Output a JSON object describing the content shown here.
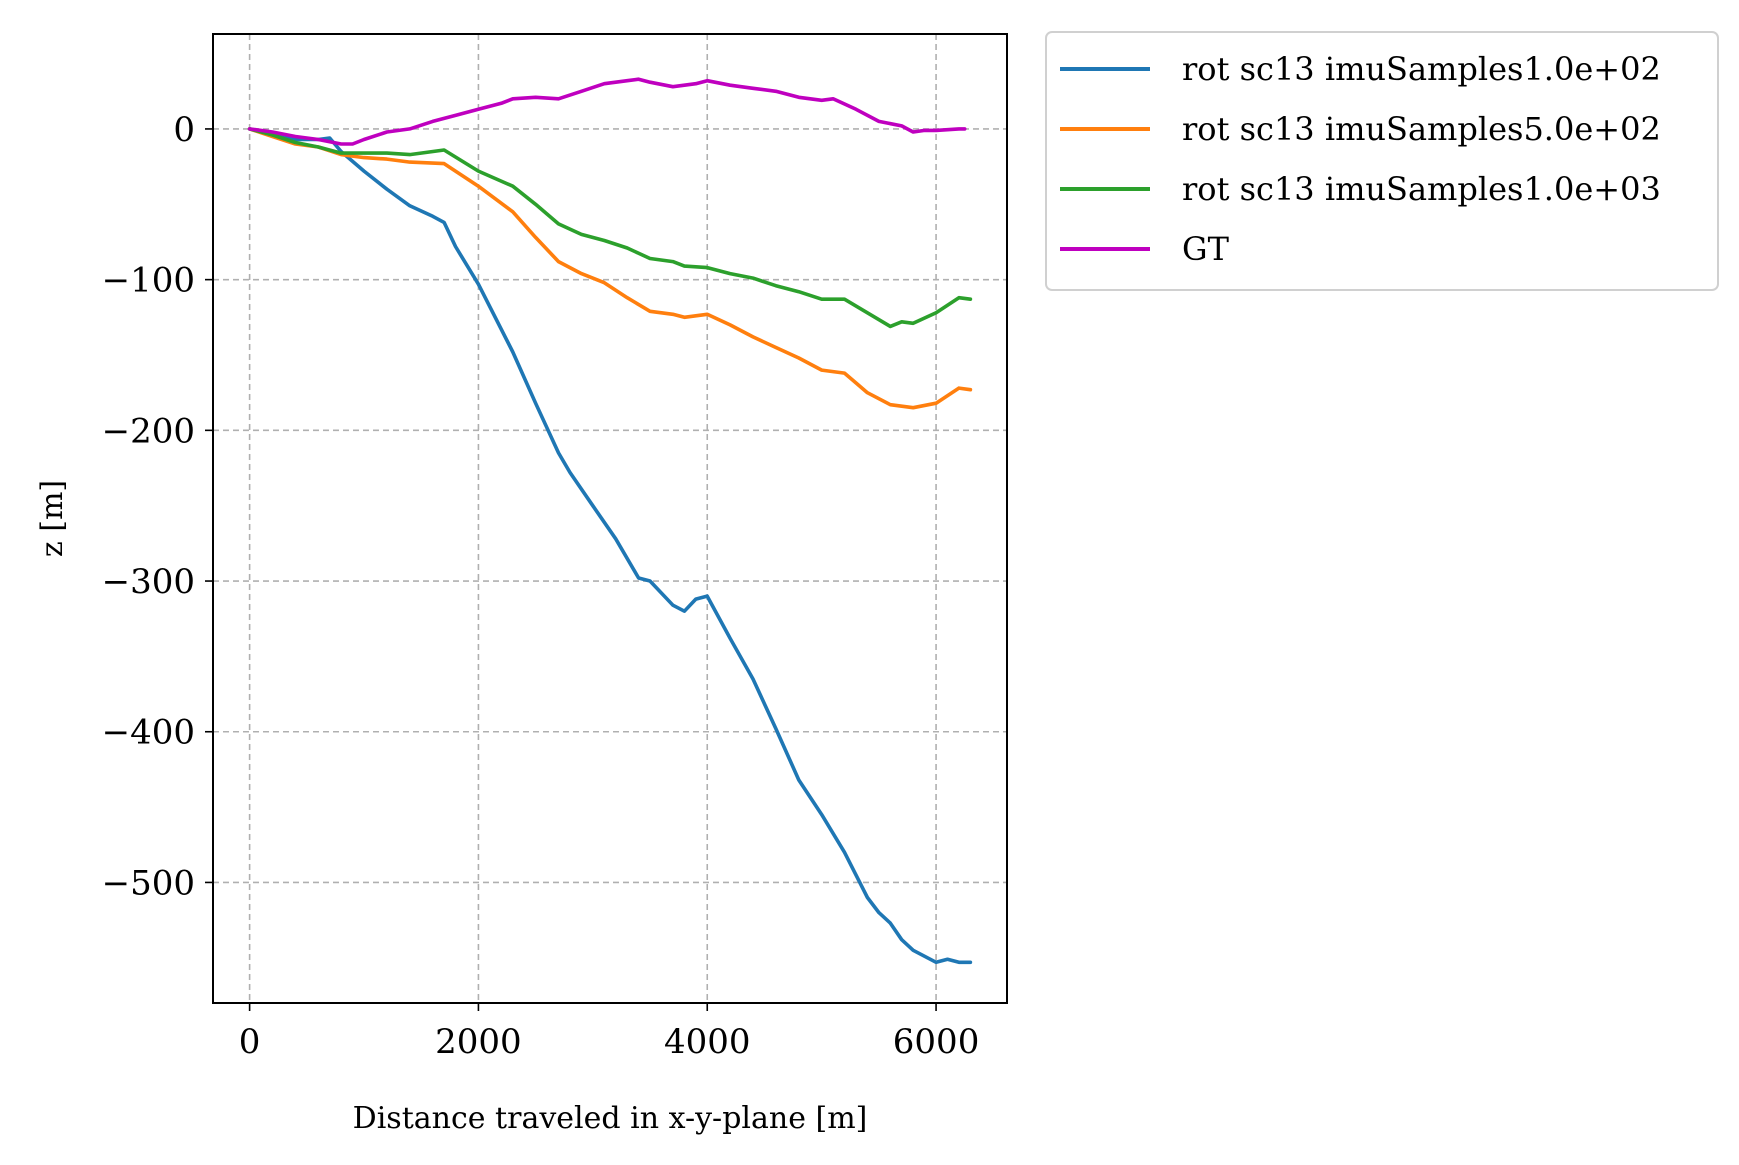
{
  "chart_data": {
    "type": "line",
    "title": "",
    "xlabel": "Distance traveled in x-y-plane [m]",
    "ylabel": "z [m]",
    "xlim": [
      -320,
      6620
    ],
    "ylim": [
      -580,
      63
    ],
    "xticks": [
      0,
      2000,
      4000,
      6000
    ],
    "xtick_labels": [
      "0",
      "2000",
      "4000",
      "6000"
    ],
    "yticks": [
      0,
      -100,
      -200,
      -300,
      -400,
      -500
    ],
    "ytick_labels": [
      "0",
      "−100",
      "−200",
      "−300",
      "−400",
      "−500"
    ],
    "grid": true,
    "legend_position": "outside-top-right",
    "series": [
      {
        "name": "rot sc13 imuSamples1.0e+02",
        "color": "#1f77b4",
        "x": [
          0,
          200,
          400,
          600,
          700,
          800,
          1000,
          1200,
          1400,
          1600,
          1700,
          1800,
          2000,
          2300,
          2500,
          2700,
          2800,
          3000,
          3200,
          3400,
          3500,
          3700,
          3800,
          3900,
          4000,
          4200,
          4400,
          4600,
          4800,
          5000,
          5200,
          5400,
          5500,
          5600,
          5700,
          5800,
          6000,
          6100,
          6200,
          6300
        ],
        "values": [
          0,
          -3,
          -7,
          -7,
          -6,
          -15,
          -28,
          -40,
          -51,
          -58,
          -62,
          -78,
          -103,
          -148,
          -182,
          -215,
          -228,
          -250,
          -272,
          -298,
          -300,
          -316,
          -320,
          -312,
          -310,
          -338,
          -365,
          -398,
          -432,
          -455,
          -480,
          -510,
          -520,
          -527,
          -538,
          -545,
          -553,
          -551,
          -553,
          -553
        ]
      },
      {
        "name": "rot sc13 imuSamples5.0e+02",
        "color": "#ff7f0e",
        "x": [
          0,
          200,
          400,
          600,
          800,
          1000,
          1200,
          1400,
          1700,
          2000,
          2300,
          2500,
          2700,
          2900,
          3100,
          3300,
          3500,
          3700,
          3800,
          4000,
          4200,
          4400,
          4600,
          4800,
          5000,
          5200,
          5400,
          5600,
          5800,
          6000,
          6200,
          6300
        ],
        "values": [
          0,
          -5,
          -10,
          -12,
          -17,
          -19,
          -20,
          -22,
          -23,
          -38,
          -55,
          -72,
          -88,
          -96,
          -102,
          -112,
          -121,
          -123,
          -125,
          -123,
          -130,
          -138,
          -145,
          -152,
          -160,
          -162,
          -175,
          -183,
          -185,
          -182,
          -172,
          -173
        ]
      },
      {
        "name": "rot sc13 imuSamples1.0e+03",
        "color": "#2ca02c",
        "x": [
          0,
          200,
          400,
          600,
          800,
          1000,
          1200,
          1400,
          1700,
          2000,
          2300,
          2500,
          2700,
          2900,
          3100,
          3300,
          3500,
          3700,
          3800,
          4000,
          4200,
          4400,
          4600,
          4800,
          5000,
          5200,
          5400,
          5600,
          5700,
          5800,
          6000,
          6200,
          6300
        ],
        "values": [
          0,
          -4,
          -9,
          -12,
          -16,
          -16,
          -16,
          -17,
          -14,
          -28,
          -38,
          -50,
          -63,
          -70,
          -74,
          -79,
          -86,
          -88,
          -91,
          -92,
          -96,
          -99,
          -104,
          -108,
          -113,
          -113,
          -122,
          -131,
          -128,
          -129,
          -122,
          -112,
          -113
        ]
      },
      {
        "name": "GT",
        "color": "#bf00bf",
        "x": [
          0,
          200,
          400,
          600,
          800,
          900,
          1000,
          1200,
          1400,
          1600,
          1800,
          2000,
          2200,
          2300,
          2500,
          2700,
          2900,
          3100,
          3300,
          3400,
          3500,
          3700,
          3800,
          3900,
          4000,
          4200,
          4400,
          4600,
          4800,
          5000,
          5100,
          5300,
          5500,
          5700,
          5800,
          5900,
          6000,
          6200,
          6250
        ],
        "values": [
          0,
          -2,
          -5,
          -7,
          -10,
          -10,
          -7,
          -2,
          0,
          5,
          9,
          13,
          17,
          20,
          21,
          20,
          25,
          30,
          32,
          33,
          31,
          28,
          29,
          30,
          32,
          29,
          27,
          25,
          21,
          19,
          20,
          13,
          5,
          2,
          -2,
          -1,
          -1,
          0,
          0
        ]
      }
    ]
  }
}
